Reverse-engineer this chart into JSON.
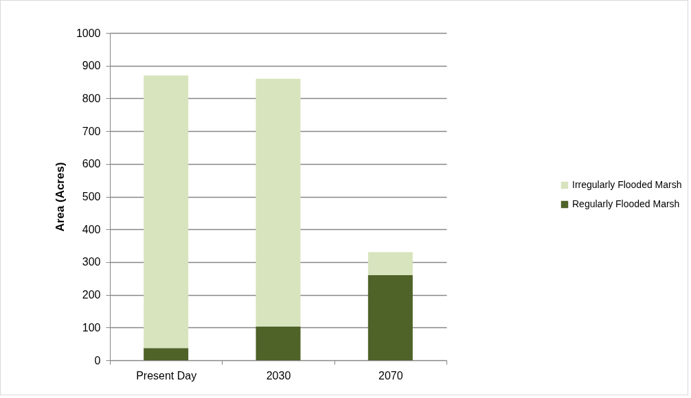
{
  "chart_data": {
    "type": "bar",
    "stacked": true,
    "ylabel": "Area (Acres)",
    "categories": [
      "Present Day",
      "2030",
      "2070"
    ],
    "series": [
      {
        "name": "Regularly Flooded Marsh",
        "color": "#4f6228",
        "values": [
          37,
          103,
          260
        ]
      },
      {
        "name": "Irregularly Flooded Marsh",
        "color": "#d7e4bd",
        "values": [
          833,
          757,
          70
        ]
      }
    ],
    "ylim": [
      0,
      1000
    ],
    "yticks": [
      0,
      100,
      200,
      300,
      400,
      500,
      600,
      700,
      800,
      900,
      1000
    ],
    "grid": "y",
    "legend": "right"
  }
}
